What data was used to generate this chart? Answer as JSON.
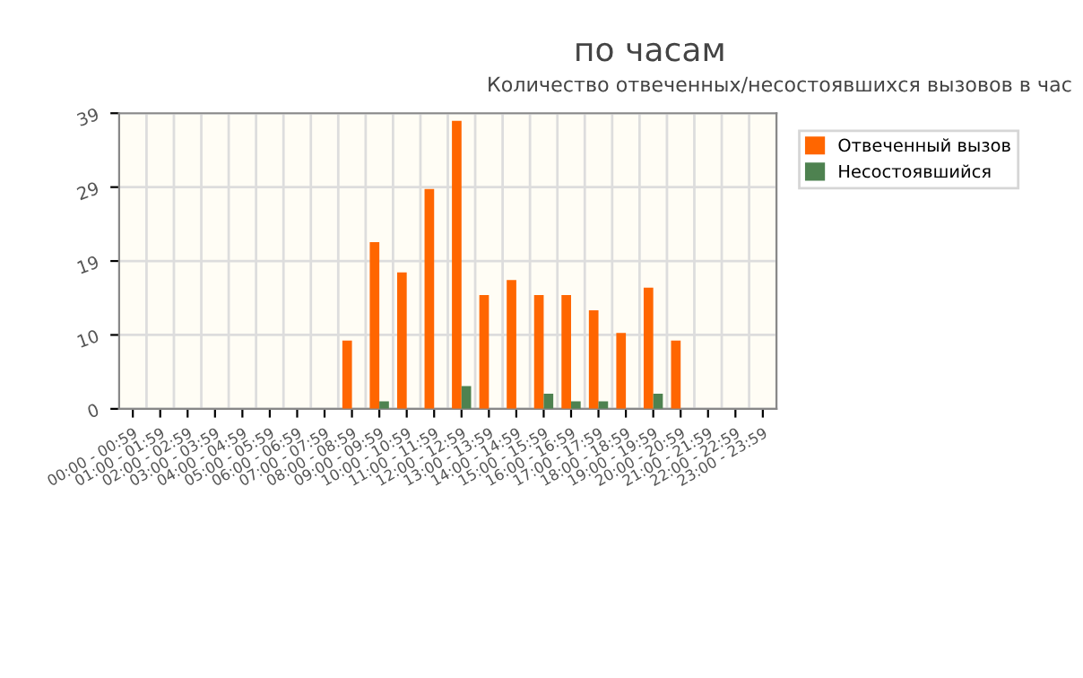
{
  "chart_data": {
    "type": "bar",
    "title": "по часам",
    "subtitle": "Количество отвеченных/несостоявшихся вызовов в час",
    "categories": [
      "00:00 - 00:59",
      "01:00 - 01:59",
      "02:00 - 02:59",
      "03:00 - 03:59",
      "04:00 - 04:59",
      "05:00 - 05:59",
      "06:00 - 06:59",
      "07:00 - 07:59",
      "08:00 - 08:59",
      "09:00 - 09:59",
      "10:00 - 10:59",
      "11:00 - 11:59",
      "12:00 - 12:59",
      "13:00 - 13:59",
      "14:00 - 14:59",
      "15:00 - 15:59",
      "16:00 - 16:59",
      "17:00 - 17:59",
      "18:00 - 18:59",
      "19:00 - 19:59",
      "20:00 - 20:59",
      "21:00 - 21:59",
      "22:00 - 22:59",
      "23:00 - 23:59"
    ],
    "series": [
      {
        "name": "Отвеченный вызов",
        "color": "#ff6600",
        "values": [
          0,
          0,
          0,
          0,
          0,
          0,
          0,
          0,
          9,
          22,
          18,
          29,
          38,
          15,
          17,
          15,
          15,
          13,
          10,
          16,
          9,
          0,
          0,
          0
        ]
      },
      {
        "name": "Несостоявшийся",
        "color": "#4e8250",
        "values": [
          0,
          0,
          0,
          0,
          0,
          0,
          0,
          0,
          0,
          1,
          0,
          0,
          3,
          0,
          0,
          2,
          1,
          1,
          0,
          2,
          0,
          0,
          0,
          0
        ]
      }
    ],
    "ylim": [
      0,
      39
    ],
    "yticks": [
      0,
      {
        "value": 9.75,
        "label": "10"
      },
      {
        "value": 19.5,
        "label": "19"
      },
      {
        "value": 29.25,
        "label": "29"
      },
      39
    ],
    "grid": true,
    "legend": "right"
  }
}
